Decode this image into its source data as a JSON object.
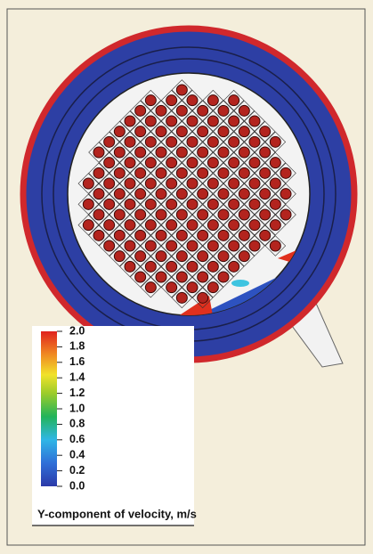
{
  "colorbar": {
    "title": "Y-component of velocity, m/s",
    "lim": [
      0,
      2
    ],
    "ticks": [
      {
        "value": 0,
        "label": "0.0"
      },
      0.2,
      0.4,
      0.6,
      0.8,
      {
        "value": 1,
        "label": "1.0"
      },
      1.2,
      1.4,
      1.6,
      1.8,
      {
        "value": 2,
        "label": "2.0"
      }
    ]
  }
}
